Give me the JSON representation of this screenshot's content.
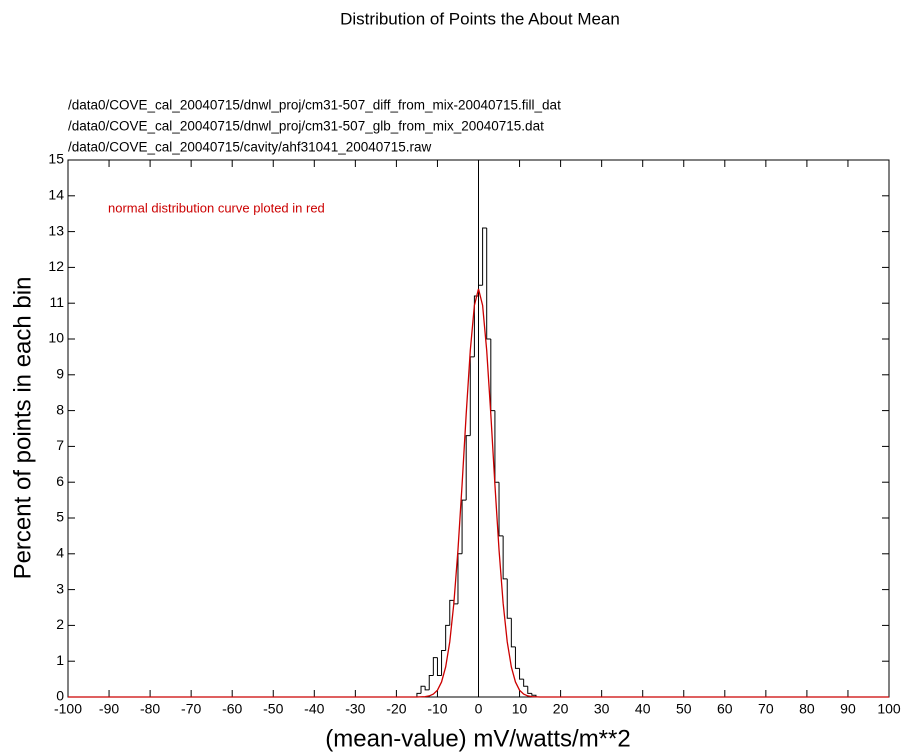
{
  "chart_data": {
    "type": "histogram",
    "title": "Distribution of Points the About Mean",
    "file_labels": [
      "/data0/COVE_cal_20040715/dnwl_proj/cm31-507_diff_from_mix-20040715.fill_dat",
      "/data0/COVE_cal_20040715/dnwl_proj/cm31-507_glb_from_mix_20040715.dat",
      "/data0/COVE_cal_20040715/cavity/ahf31041_20040715.raw"
    ],
    "annotation": "normal distribution curve ploted in red",
    "xlabel": "(mean-value) mV/watts/m**2",
    "ylabel": "Percent of points in each bin",
    "bins": [
      -15,
      -14,
      -13,
      -12,
      -11,
      -10,
      -9,
      -8,
      -7,
      -6,
      -5,
      -4,
      -3,
      -2,
      -1,
      0,
      1,
      2,
      3,
      4,
      5,
      6,
      7,
      8,
      9,
      10,
      11,
      12,
      13,
      14
    ],
    "counts": [
      0.1,
      0.3,
      0.2,
      0.6,
      1.1,
      0.6,
      1.3,
      2.0,
      2.7,
      2.6,
      4.0,
      5.5,
      7.3,
      9.5,
      11.2,
      11.5,
      13.1,
      10.0,
      8.0,
      6.0,
      4.5,
      3.3,
      2.2,
      1.4,
      0.8,
      0.5,
      0.3,
      0.1,
      0.05
    ],
    "color": "#000000",
    "curve": {
      "x": [
        -100,
        -20,
        -15,
        -13,
        -12,
        -11,
        -10,
        -9,
        -8,
        -7,
        -6,
        -5,
        -4,
        -3,
        -2,
        -1,
        0,
        1,
        2,
        3,
        4,
        5,
        6,
        7,
        8,
        9,
        10,
        11,
        12,
        13,
        15,
        20,
        100
      ],
      "values": [
        0,
        0,
        0,
        0.01,
        0.03,
        0.08,
        0.19,
        0.42,
        0.84,
        1.54,
        2.62,
        4.11,
        5.93,
        7.9,
        9.68,
        10.94,
        11.4,
        10.94,
        9.68,
        7.9,
        5.93,
        4.11,
        2.62,
        1.54,
        0.84,
        0.42,
        0.19,
        0.08,
        0.03,
        0.01,
        0,
        0,
        0
      ],
      "color": "#cc0000"
    },
    "vline": 0,
    "xlim": [
      -100,
      100
    ],
    "ylim": [
      0,
      15
    ],
    "xticks": [
      -100,
      -90,
      -80,
      -70,
      -60,
      -50,
      -40,
      -30,
      -20,
      -10,
      0,
      10,
      20,
      30,
      40,
      50,
      60,
      70,
      80,
      90,
      100
    ],
    "yticks": [
      0,
      1,
      2,
      3,
      4,
      5,
      6,
      7,
      8,
      9,
      10,
      11,
      12,
      13,
      14,
      15
    ]
  }
}
